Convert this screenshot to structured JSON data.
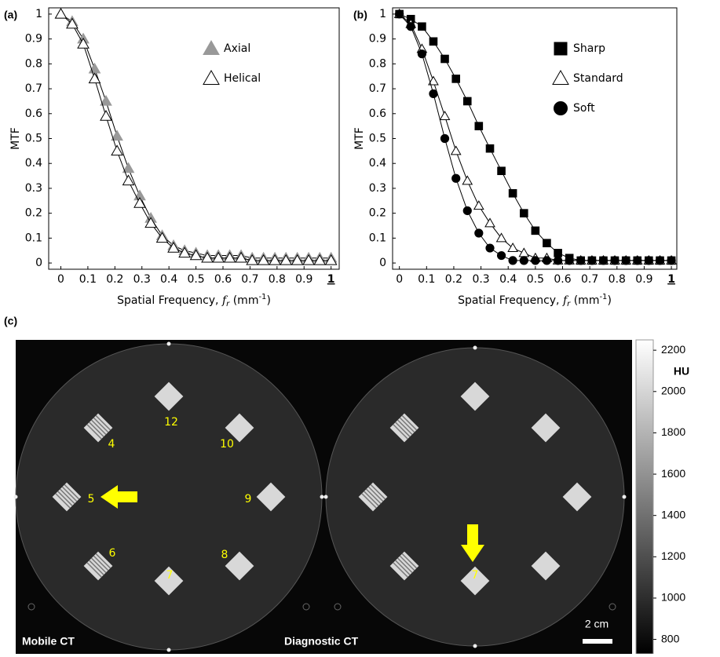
{
  "chart_data": [
    {
      "type": "line",
      "panel_label": "(a)",
      "ylabel": "MTF",
      "xlabel_parts": [
        "Spatial Frequency, ",
        "f",
        "r",
        " (mm",
        "-1",
        ")"
      ],
      "x": [
        0,
        0.042,
        0.083,
        0.125,
        0.167,
        0.208,
        0.25,
        0.292,
        0.333,
        0.375,
        0.417,
        0.458,
        0.5,
        0.542,
        0.583,
        0.625,
        0.667,
        0.708,
        0.75,
        0.792,
        0.833,
        0.875,
        0.917,
        0.958,
        1
      ],
      "series": [
        {
          "name": "Axial",
          "color": "#999999",
          "marker": "triangle",
          "filled": true,
          "values": [
            1,
            0.97,
            0.9,
            0.78,
            0.65,
            0.51,
            0.38,
            0.27,
            0.18,
            0.11,
            0.07,
            0.05,
            0.04,
            0.03,
            0.03,
            0.03,
            0.03,
            0.02,
            0.02,
            0.02,
            0.02,
            0.02,
            0.02,
            0.02,
            0.02
          ]
        },
        {
          "name": "Helical",
          "color": "#000000",
          "marker": "triangle",
          "filled": false,
          "values": [
            1,
            0.96,
            0.88,
            0.74,
            0.59,
            0.45,
            0.33,
            0.24,
            0.16,
            0.1,
            0.06,
            0.04,
            0.03,
            0.02,
            0.02,
            0.02,
            0.02,
            0.01,
            0.01,
            0.01,
            0.01,
            0.01,
            0.01,
            0.01,
            0.01
          ]
        }
      ],
      "xlim": [
        -0.045,
        1.03
      ],
      "ylim": [
        -0.025,
        1.025
      ],
      "xticks": [
        0,
        0.1,
        0.2,
        0.3,
        0.4,
        0.5,
        0.6,
        0.7,
        0.8,
        0.9,
        1
      ],
      "yticks": [
        0,
        0.1,
        0.2,
        0.3,
        0.4,
        0.5,
        0.6,
        0.7,
        0.8,
        0.9,
        1
      ],
      "legend": "upper right"
    },
    {
      "type": "line",
      "panel_label": "(b)",
      "ylabel": "MTF",
      "xlabel_parts": [
        "Spatial Frequency, ",
        "f",
        "r",
        " (mm",
        "-1",
        ")"
      ],
      "x": [
        0,
        0.042,
        0.083,
        0.125,
        0.167,
        0.208,
        0.25,
        0.292,
        0.333,
        0.375,
        0.417,
        0.458,
        0.5,
        0.542,
        0.583,
        0.625,
        0.667,
        0.708,
        0.75,
        0.792,
        0.833,
        0.875,
        0.917,
        0.958,
        1
      ],
      "series": [
        {
          "name": "Sharp",
          "color": "#000000",
          "marker": "square",
          "filled": true,
          "values": [
            1,
            0.98,
            0.95,
            0.89,
            0.82,
            0.74,
            0.65,
            0.55,
            0.46,
            0.37,
            0.28,
            0.2,
            0.13,
            0.08,
            0.04,
            0.02,
            0.01,
            0.01,
            0.01,
            0.01,
            0.01,
            0.01,
            0.01,
            0.01,
            0.01
          ]
        },
        {
          "name": "Standard",
          "color": "#000000",
          "marker": "triangle",
          "filled": false,
          "values": [
            1,
            0.96,
            0.86,
            0.73,
            0.59,
            0.45,
            0.33,
            0.23,
            0.16,
            0.1,
            0.06,
            0.04,
            0.02,
            0.02,
            0.01,
            0.01,
            0.01,
            0.01,
            0.01,
            0.01,
            0.01,
            0.01,
            0.01,
            0.01,
            0.01
          ]
        },
        {
          "name": "Soft",
          "color": "#000000",
          "marker": "circle",
          "filled": true,
          "values": [
            1,
            0.95,
            0.84,
            0.68,
            0.5,
            0.34,
            0.21,
            0.12,
            0.06,
            0.03,
            0.01,
            0.01,
            0.01,
            0.01,
            0.01,
            0.01,
            0.01,
            0.01,
            0.01,
            0.01,
            0.01,
            0.01,
            0.01,
            0.01,
            0.01
          ]
        }
      ],
      "xlim": [
        -0.025,
        1.02
      ],
      "ylim": [
        -0.025,
        1.025
      ],
      "xticks": [
        0,
        0.1,
        0.2,
        0.3,
        0.4,
        0.5,
        0.6,
        0.7,
        0.8,
        0.9,
        1
      ],
      "yticks": [
        0,
        0.1,
        0.2,
        0.3,
        0.4,
        0.5,
        0.6,
        0.7,
        0.8,
        0.9,
        1
      ],
      "legend": "upper right"
    }
  ],
  "image_panel": {
    "panel_label": "(c)",
    "left_label": "Mobile CT",
    "right_label": "Diagnostic CT",
    "scale_bar": "2 cm",
    "rod_labels": [
      "12",
      "10",
      "9",
      "8",
      "7",
      "6",
      "5",
      "4"
    ],
    "right_rod_label": "7",
    "colorbar": {
      "title": "HU",
      "clim": [
        730,
        2250
      ],
      "ticks": [
        800,
        1000,
        1200,
        1400,
        1600,
        1800,
        2000,
        2200
      ]
    }
  }
}
